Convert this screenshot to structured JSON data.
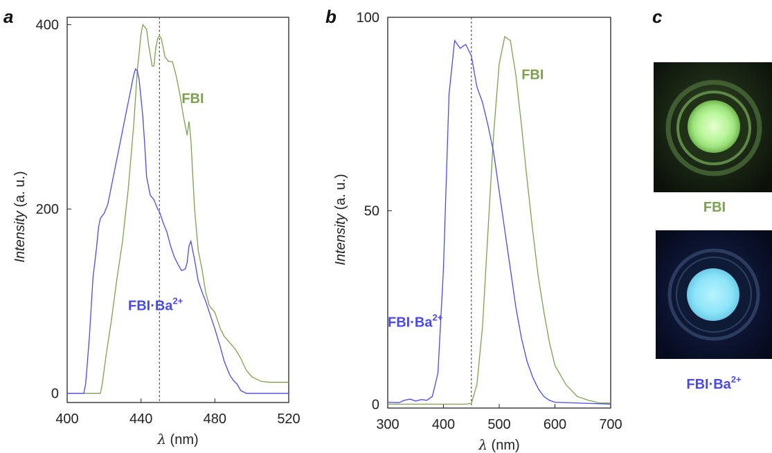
{
  "panels": [
    "a",
    "b",
    "c"
  ],
  "colors": {
    "fbi": "#7da050",
    "fbi_ba": "#4a4ae8",
    "dash": "#555555",
    "frame": "#222222"
  },
  "chart_data": [
    {
      "type": "line",
      "panel": "a",
      "xlabel_var": "λ",
      "xlabel_unit": " (nm)",
      "ylabel_var": "Intensity",
      "ylabel_unit": " (a. u.)",
      "xlim": [
        400,
        520
      ],
      "ylim": [
        -10,
        408
      ],
      "xticks": [
        400,
        440,
        480,
        520
      ],
      "yticks": [
        0,
        200,
        400
      ],
      "vline": 450,
      "series": [
        {
          "name": "FBI",
          "label_main": "FBI",
          "label_sup": "",
          "color_key": "fbi",
          "label_pos": [
            462,
            315
          ],
          "points": [
            [
              400,
              0
            ],
            [
              414,
              0
            ],
            [
              418,
              0
            ],
            [
              419,
              10
            ],
            [
              421,
              40
            ],
            [
              424,
              80
            ],
            [
              427,
              125
            ],
            [
              430,
              165
            ],
            [
              433,
              220
            ],
            [
              436,
              290
            ],
            [
              438,
              350
            ],
            [
              440,
              390
            ],
            [
              441,
              400
            ],
            [
              443,
              395
            ],
            [
              444,
              380
            ],
            [
              446,
              355
            ],
            [
              447,
              355
            ],
            [
              448,
              375
            ],
            [
              449,
              385
            ],
            [
              450,
              388
            ],
            [
              451,
              385
            ],
            [
              453,
              365
            ],
            [
              455,
              360
            ],
            [
              457,
              360
            ],
            [
              459,
              345
            ],
            [
              461,
              325
            ],
            [
              463,
              300
            ],
            [
              465,
              280
            ],
            [
              466,
              295
            ],
            [
              467,
              275
            ],
            [
              469,
              200
            ],
            [
              471,
              155
            ],
            [
              473,
              135
            ],
            [
              475,
              110
            ],
            [
              477,
              95
            ],
            [
              480,
              88
            ],
            [
              483,
              70
            ],
            [
              485,
              62
            ],
            [
              488,
              55
            ],
            [
              491,
              48
            ],
            [
              494,
              38
            ],
            [
              497,
              25
            ],
            [
              500,
              18
            ],
            [
              505,
              13
            ],
            [
              510,
              12
            ],
            [
              520,
              12
            ]
          ]
        },
        {
          "name": "FBI·Ba2+",
          "label_main": "FBI·Ba",
          "label_sup": "2+",
          "color_key": "fbi_ba",
          "label_pos": [
            433,
            90
          ],
          "points": [
            [
              400,
              0
            ],
            [
              409,
              0
            ],
            [
              410,
              10
            ],
            [
              412,
              60
            ],
            [
              414,
              125
            ],
            [
              416,
              160
            ],
            [
              417,
              180
            ],
            [
              418,
              190
            ],
            [
              420,
              195
            ],
            [
              422,
              205
            ],
            [
              424,
              225
            ],
            [
              426,
              245
            ],
            [
              428,
              265
            ],
            [
              430,
              285
            ],
            [
              432,
              305
            ],
            [
              434,
              325
            ],
            [
              436,
              345
            ],
            [
              437,
              352
            ],
            [
              438,
              350
            ],
            [
              439,
              340
            ],
            [
              440,
              320
            ],
            [
              441,
              300
            ],
            [
              442,
              270
            ],
            [
              443,
              235
            ],
            [
              445,
              215
            ],
            [
              447,
              210
            ],
            [
              449,
              200
            ],
            [
              450,
              197
            ],
            [
              452,
              185
            ],
            [
              454,
              175
            ],
            [
              456,
              160
            ],
            [
              458,
              148
            ],
            [
              460,
              140
            ],
            [
              462,
              133
            ],
            [
              464,
              135
            ],
            [
              465,
              142
            ],
            [
              466,
              160
            ],
            [
              467,
              165
            ],
            [
              469,
              145
            ],
            [
              471,
              122
            ],
            [
              473,
              110
            ],
            [
              475,
              100
            ],
            [
              477,
              88
            ],
            [
              480,
              70
            ],
            [
              483,
              50
            ],
            [
              485,
              35
            ],
            [
              488,
              20
            ],
            [
              490,
              14
            ],
            [
              492,
              10
            ],
            [
              494,
              3
            ],
            [
              497,
              0
            ],
            [
              520,
              0
            ]
          ]
        }
      ]
    },
    {
      "type": "line",
      "panel": "b",
      "xlabel_var": "λ",
      "xlabel_unit": " (nm)",
      "ylabel_var": "Intensity",
      "ylabel_unit": " (a. u.)",
      "xlim": [
        300,
        700
      ],
      "ylim": [
        -1,
        100
      ],
      "xticks": [
        300,
        400,
        500,
        600,
        700
      ],
      "yticks": [
        0,
        50,
        100
      ],
      "vline": 450,
      "series": [
        {
          "name": "FBI",
          "label_main": "FBI",
          "label_sup": "",
          "color_key": "fbi",
          "label_pos": [
            540,
            84
          ],
          "points": [
            [
              300,
              0
            ],
            [
              440,
              0
            ],
            [
              450,
              0.2
            ],
            [
              460,
              5
            ],
            [
              470,
              20
            ],
            [
              480,
              45
            ],
            [
              490,
              70
            ],
            [
              500,
              88
            ],
            [
              510,
              95
            ],
            [
              520,
              94
            ],
            [
              530,
              85
            ],
            [
              540,
              72
            ],
            [
              550,
              58
            ],
            [
              560,
              45
            ],
            [
              570,
              33
            ],
            [
              580,
              24
            ],
            [
              590,
              16
            ],
            [
              600,
              10
            ],
            [
              620,
              5
            ],
            [
              640,
              2
            ],
            [
              660,
              1
            ],
            [
              680,
              0.3
            ],
            [
              700,
              0.3
            ]
          ]
        },
        {
          "name": "FBI·Ba2+",
          "label_main": "FBI·Ba",
          "label_sup": "2+",
          "color_key": "fbi_ba",
          "label_pos": [
            300,
            20
          ],
          "points": [
            [
              300,
              0.5
            ],
            [
              320,
              0.4
            ],
            [
              330,
              1
            ],
            [
              340,
              1.3
            ],
            [
              350,
              0.8
            ],
            [
              360,
              1.2
            ],
            [
              370,
              1
            ],
            [
              380,
              2
            ],
            [
              390,
              8
            ],
            [
              400,
              35
            ],
            [
              410,
              80
            ],
            [
              420,
              94
            ],
            [
              430,
              92
            ],
            [
              440,
              93
            ],
            [
              450,
              90
            ],
            [
              460,
              82
            ],
            [
              470,
              78
            ],
            [
              480,
              72
            ],
            [
              490,
              65
            ],
            [
              500,
              55
            ],
            [
              510,
              45
            ],
            [
              520,
              35
            ],
            [
              530,
              25
            ],
            [
              540,
              17
            ],
            [
              550,
              11
            ],
            [
              560,
              7
            ],
            [
              570,
              4
            ],
            [
              580,
              2
            ],
            [
              590,
              1
            ],
            [
              600,
              0.5
            ],
            [
              700,
              0
            ]
          ]
        }
      ]
    }
  ],
  "photos": [
    {
      "label": "FBI",
      "color_key": "fbi"
    },
    {
      "label_main": "FBI·Ba",
      "label_sup": "2+",
      "color_key": "fbi_ba"
    }
  ]
}
